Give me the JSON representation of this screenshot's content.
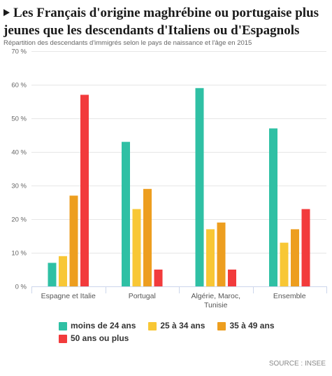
{
  "header": {
    "marker_icon": "triangle-right-icon"
  },
  "chart_data": {
    "type": "bar",
    "title": "Les Français d'origine maghrébine ou portugaise plus jeunes que les descendants d'Italiens ou d'Espagnols",
    "subtitle": "Répartition des descendants d'immigrés selon le pays de naissance et l'âge en 2015",
    "categories": [
      "Espagne et Italie",
      "Portugal",
      "Algérie, Maroc, Tunisie",
      "Ensemble"
    ],
    "ylim": [
      0,
      70
    ],
    "y_ticks": [
      0,
      10,
      20,
      30,
      40,
      50,
      60,
      70
    ],
    "y_tick_labels": [
      "0 %",
      "10 %",
      "20 %",
      "30 %",
      "40 %",
      "50 %",
      "60 %",
      "70 %"
    ],
    "grid": true,
    "legend_position": "bottom",
    "series": [
      {
        "name": "moins de 24 ans",
        "color": "#2fc0a4",
        "values": [
          7,
          43,
          59,
          47
        ]
      },
      {
        "name": "25 à 34 ans",
        "color": "#f8c735",
        "values": [
          9,
          23,
          17,
          13
        ]
      },
      {
        "name": "35 à 49 ans",
        "color": "#ed9e1f",
        "values": [
          27,
          29,
          19,
          17
        ]
      },
      {
        "name": "50 ans ou plus",
        "color": "#f23b3c",
        "values": [
          57,
          5,
          5,
          23
        ]
      }
    ]
  },
  "footer": {
    "source": "SOURCE : INSEE"
  }
}
